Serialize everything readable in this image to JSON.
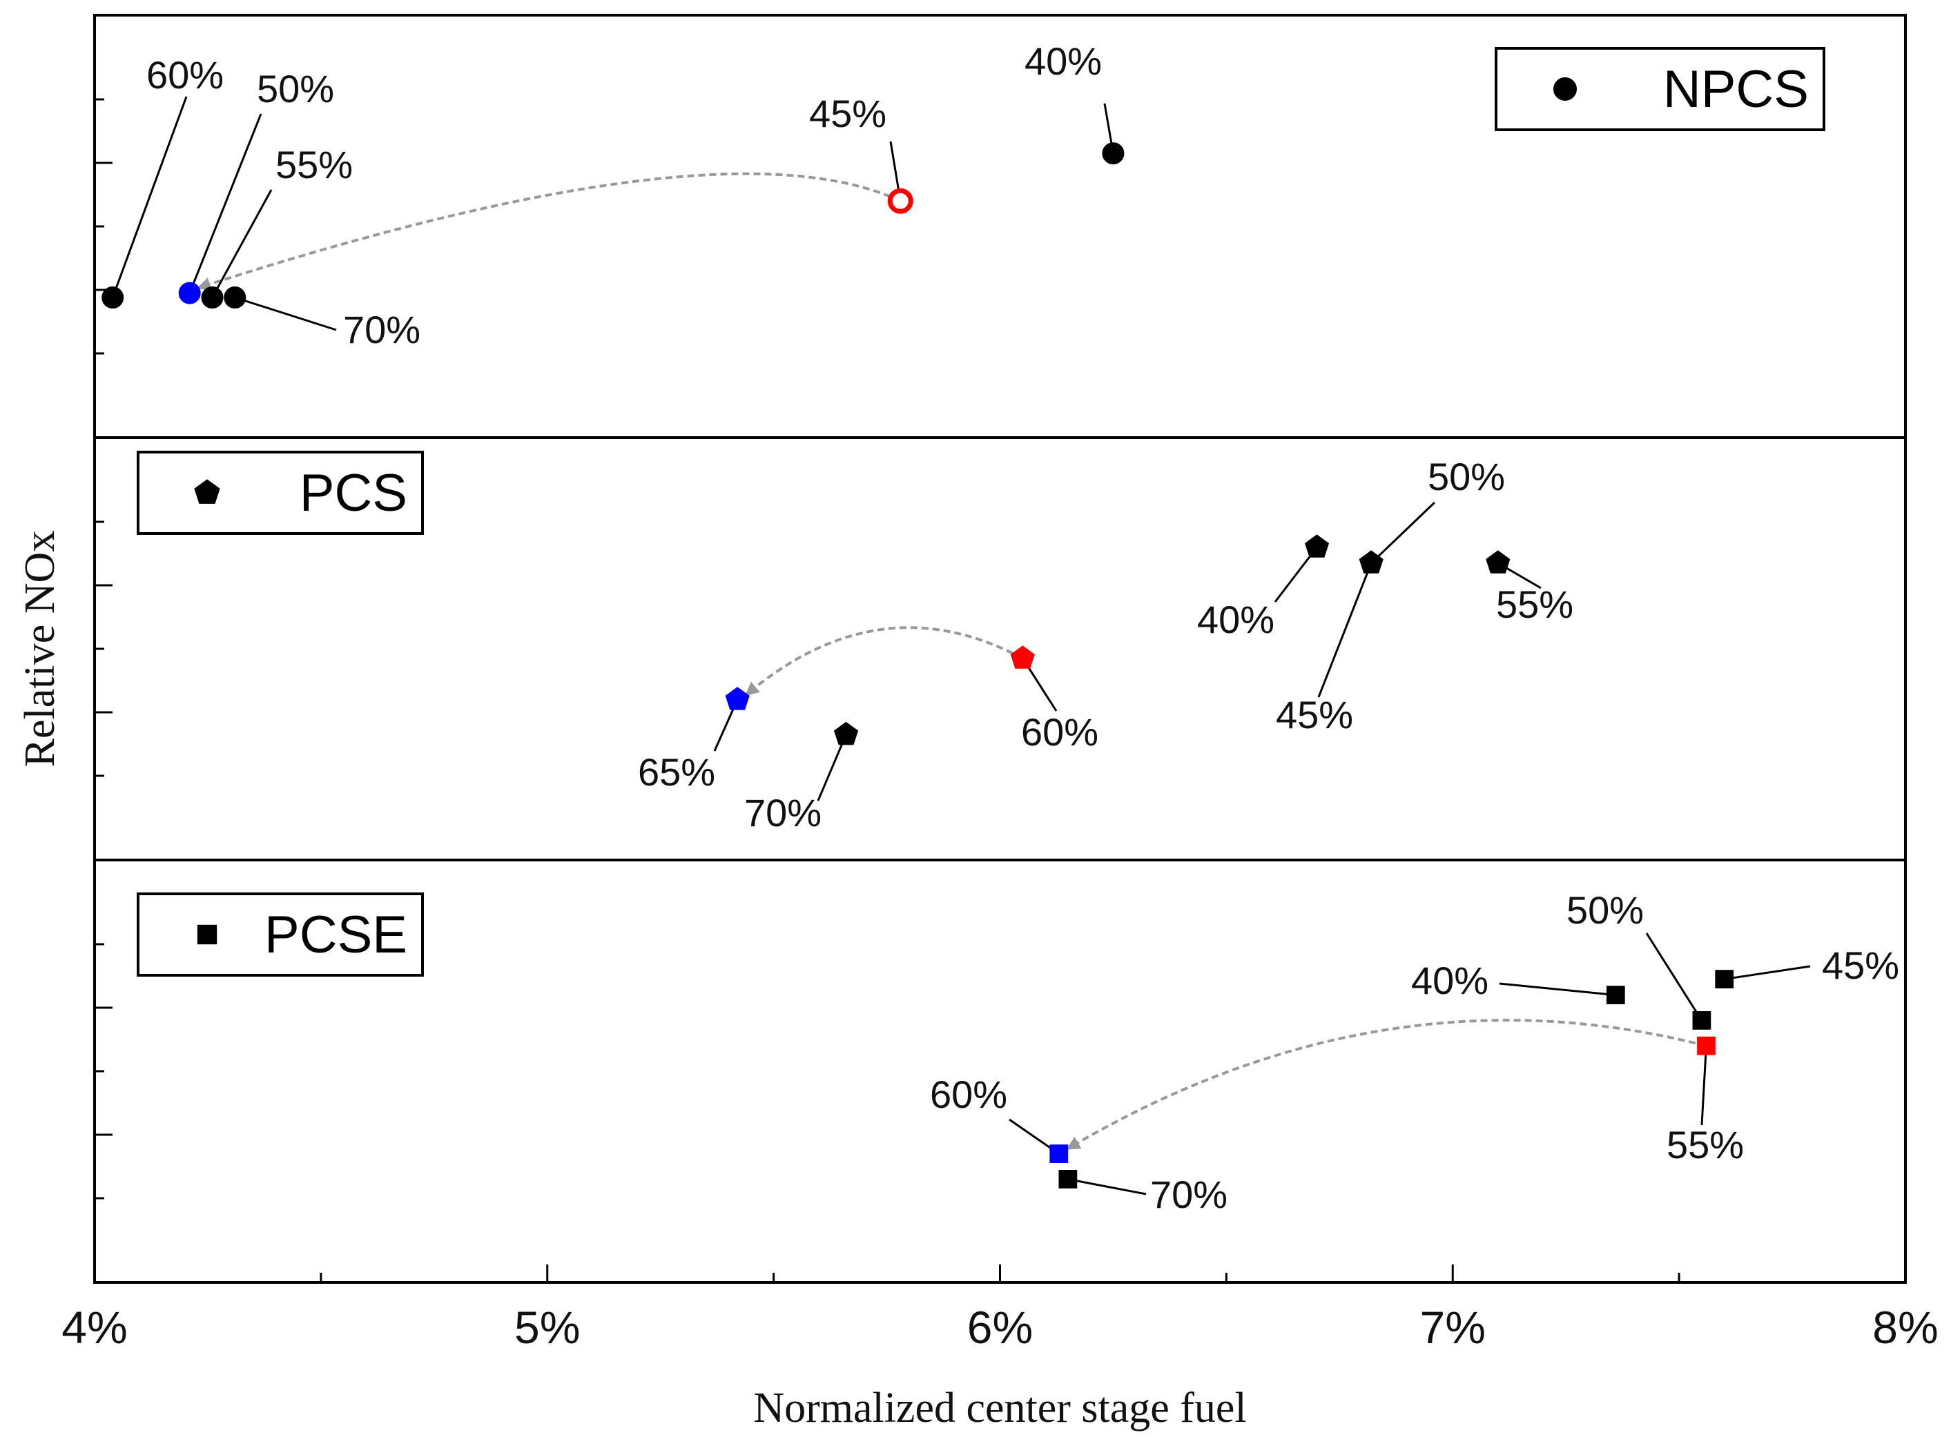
{
  "chart_data": {
    "type": "scatter",
    "xlabel": "Normalized center stage fuel",
    "ylabel": "Relative NOx",
    "x_range": [
      4,
      8
    ],
    "x_ticks": [
      {
        "value": 4,
        "label": "4%"
      },
      {
        "value": 5,
        "label": "5%"
      },
      {
        "value": 6,
        "label": "6%"
      },
      {
        "value": 7,
        "label": "7%"
      },
      {
        "value": 8,
        "label": "8%"
      }
    ],
    "x_minor_ticks": [
      4.5,
      5.5,
      6.5,
      7.5
    ],
    "y_units_note": "relative (unlabeled); each panel uses its own 0-6 scale",
    "panels": [
      {
        "name": "NPCS",
        "marker": "circle",
        "legend_label": "NPCS",
        "legend_position": "top-right",
        "y_ticks": [
          1,
          2,
          3,
          4,
          5
        ],
        "points": [
          {
            "label": "40%",
            "x": 6.25,
            "y": 4.15,
            "color": "#000000"
          },
          {
            "label": "45%",
            "x": 5.78,
            "y": 3.4,
            "color": "#ff0000",
            "hollow": true
          },
          {
            "label": "50%",
            "x": 4.21,
            "y": 1.95,
            "color": "#0000ff"
          },
          {
            "label": "55%",
            "x": 4.26,
            "y": 1.88,
            "color": "#000000"
          },
          {
            "label": "60%",
            "x": 4.04,
            "y": 1.88,
            "color": "#000000"
          },
          {
            "label": "70%",
            "x": 4.31,
            "y": 1.88,
            "color": "#000000"
          }
        ],
        "trend": {
          "from": "45%",
          "to": "50%"
        }
      },
      {
        "name": "PCS",
        "marker": "pentagon",
        "legend_label": "PCS",
        "legend_position": "top-left",
        "y_ticks": [
          1,
          2,
          3,
          4,
          5
        ],
        "points": [
          {
            "label": "40%",
            "x": 6.7,
            "y": 4.6,
            "color": "#000000"
          },
          {
            "label": "45%",
            "x": 6.82,
            "y": 4.35,
            "color": "#000000"
          },
          {
            "label": "50%",
            "x": 6.82,
            "y": 4.35,
            "color": "#000000",
            "hidden": true
          },
          {
            "label": "55%",
            "x": 7.1,
            "y": 4.35,
            "color": "#000000"
          },
          {
            "label": "60%",
            "x": 6.05,
            "y": 2.85,
            "color": "#ff0000"
          },
          {
            "label": "65%",
            "x": 5.42,
            "y": 2.2,
            "color": "#0000ff"
          },
          {
            "label": "70%",
            "x": 5.66,
            "y": 1.65,
            "color": "#000000"
          }
        ],
        "trend": {
          "from": "60%",
          "to": "65%"
        }
      },
      {
        "name": "PCSE",
        "marker": "square",
        "legend_label": "PCSE",
        "legend_position": "top-left",
        "y_ticks": [
          1,
          2,
          3,
          4,
          5
        ],
        "points": [
          {
            "label": "40%",
            "x": 7.36,
            "y": 4.2,
            "color": "#000000"
          },
          {
            "label": "45%",
            "x": 7.6,
            "y": 4.45,
            "color": "#000000"
          },
          {
            "label": "50%",
            "x": 7.55,
            "y": 3.8,
            "color": "#000000"
          },
          {
            "label": "55%",
            "x": 7.56,
            "y": 3.4,
            "color": "#ff0000"
          },
          {
            "label": "60%",
            "x": 6.13,
            "y": 1.7,
            "color": "#0000ff"
          },
          {
            "label": "70%",
            "x": 6.15,
            "y": 1.3,
            "color": "#000000"
          }
        ],
        "trend": {
          "from": "55%",
          "to": "60%"
        }
      }
    ]
  }
}
